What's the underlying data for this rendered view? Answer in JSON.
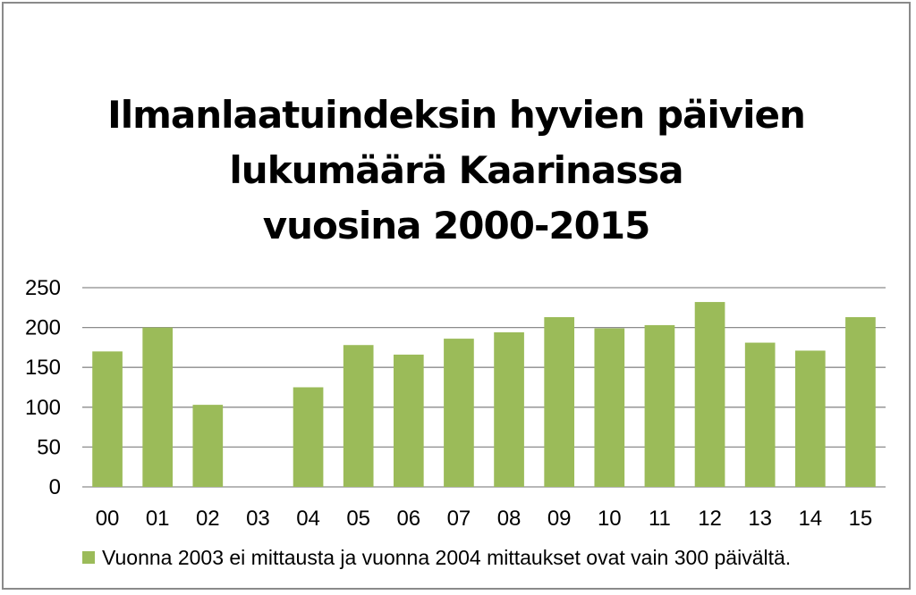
{
  "chart_data": {
    "type": "bar",
    "title_lines": [
      "Ilmanlaatuindeksin hyvien päivien",
      "lukumäärä Kaarinassa",
      "vuosina 2000-2015"
    ],
    "categories": [
      "00",
      "01",
      "02",
      "03",
      "04",
      "05",
      "06",
      "07",
      "08",
      "09",
      "10",
      "11",
      "12",
      "13",
      "14",
      "15"
    ],
    "series": [
      {
        "name": "Vuonna 2003 ei mittausta ja vuonna 2004 mittaukset ovat vain 300 päivältä.",
        "values": [
          170,
          200,
          103,
          null,
          125,
          178,
          166,
          186,
          194,
          213,
          199,
          203,
          232,
          181,
          171,
          213
        ],
        "color": "#9bbb59"
      }
    ],
    "yticks": [
      0,
      50,
      100,
      150,
      200,
      250
    ],
    "ylim": [
      0,
      250
    ],
    "grid": true,
    "legend_position": "bottom"
  }
}
